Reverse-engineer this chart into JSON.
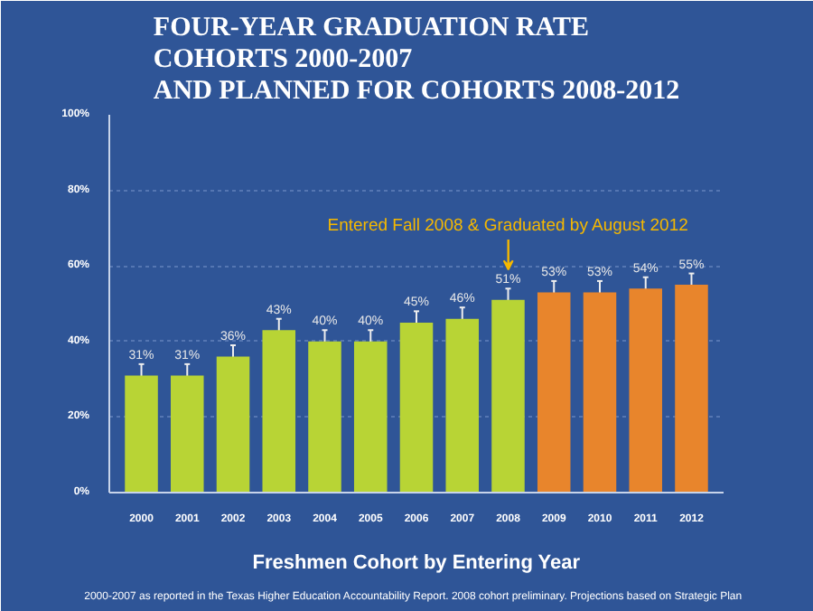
{
  "chart_data": {
    "type": "bar",
    "title": "FOUR-YEAR GRADUATION RATE\nCOHORTS 2000-2007\nAND PLANNED FOR COHORTS 2008-2012",
    "xlabel": "Freshmen Cohort by Entering Year",
    "categories": [
      "2000",
      "2001",
      "2002",
      "2003",
      "2004",
      "2005",
      "2006",
      "2007",
      "2008",
      "2009",
      "2010",
      "2011",
      "2012"
    ],
    "values": [
      31,
      31,
      36,
      43,
      40,
      40,
      45,
      46,
      51,
      53,
      53,
      54,
      55
    ],
    "colors": [
      "#b8d435",
      "#b8d435",
      "#b8d435",
      "#b8d435",
      "#b8d435",
      "#b8d435",
      "#b8d435",
      "#b8d435",
      "#b8d435",
      "#e8852c",
      "#e8852c",
      "#e8852c",
      "#e8852c"
    ],
    "errors": [
      3,
      3,
      3,
      3,
      3,
      3,
      3,
      3,
      3,
      3,
      3,
      3,
      3
    ],
    "value_labels": [
      "31%",
      "31%",
      "36%",
      "43%",
      "40%",
      "40%",
      "45%",
      "46%",
      "51%",
      "53%",
      "53%",
      "54%",
      "55%"
    ],
    "ylim": [
      0,
      100
    ],
    "yticks": [
      {
        "value": 0,
        "label": "0%"
      },
      {
        "value": 20,
        "label": "20%"
      },
      {
        "value": 40,
        "label": "40%"
      },
      {
        "value": 60,
        "label": "60%"
      },
      {
        "value": 80,
        "label": "80%"
      },
      {
        "value": 100,
        "label": "100%"
      }
    ],
    "grid": "y",
    "annotations": [
      "Entered Fall 2008 & Graduated by August 2012",
      "2000-2007 as reported in the Texas Higher Education Accountability Report.  2008 cohort preliminary.  Projections based on Strategic Plan"
    ]
  }
}
